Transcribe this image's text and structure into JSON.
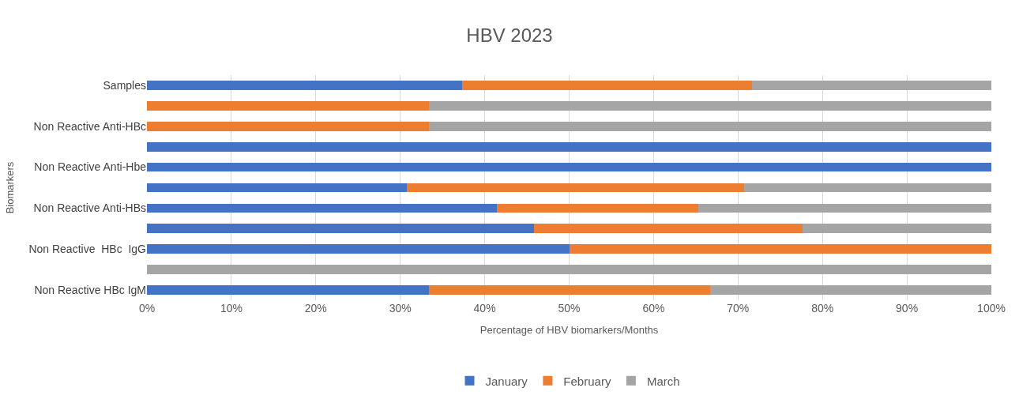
{
  "chart_data": {
    "type": "bar",
    "orientation": "horizontal",
    "stacked": true,
    "title": "HBV 2023",
    "xlabel": "Percentage of HBV biomarkers/Months",
    "ylabel": "Biomarkers",
    "categories": [
      "Samples",
      null,
      "Non Reactive Anti-HBc",
      null,
      "Non Reactive Anti-Hbe",
      null,
      "Non Reactive Anti-HBs",
      null,
      "Non Reactive  HBc  IgG",
      null,
      "Non Reactive HBc IgM"
    ],
    "series": [
      {
        "name": "January",
        "color": "#4472c4",
        "values": [
          37.3,
          0,
          0,
          100,
          100,
          30.8,
          41.4,
          45.8,
          50,
          0,
          33.4
        ]
      },
      {
        "name": "February",
        "color": "#ed7d31",
        "values": [
          34.4,
          33.4,
          33.4,
          0,
          0,
          39.9,
          23.9,
          31.8,
          50,
          0,
          33.3
        ]
      },
      {
        "name": "March",
        "color": "#a5a5a5",
        "values": [
          28.3,
          66.6,
          66.6,
          0,
          0,
          29.3,
          34.7,
          22.4,
          0,
          100,
          33.3
        ]
      }
    ],
    "xlim": [
      0,
      100
    ],
    "xticks": [
      {
        "value": 0,
        "label": "0%"
      },
      {
        "value": 10,
        "label": "10%"
      },
      {
        "value": 20,
        "label": "20%"
      },
      {
        "value": 30,
        "label": "30%"
      },
      {
        "value": 40,
        "label": "40%"
      },
      {
        "value": 50,
        "label": "50%"
      },
      {
        "value": 60,
        "label": "60%"
      },
      {
        "value": 70,
        "label": "70%"
      },
      {
        "value": 80,
        "label": "80%"
      },
      {
        "value": 90,
        "label": "90%"
      },
      {
        "value": 100,
        "label": "100%"
      }
    ],
    "grid": "x",
    "legend": "bottom"
  }
}
